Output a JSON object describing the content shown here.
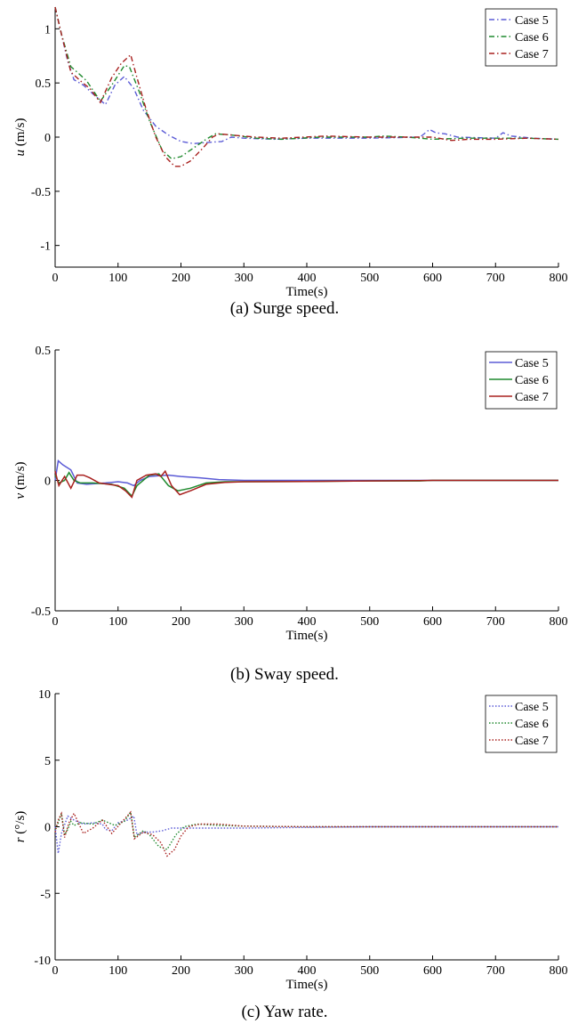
{
  "chart_data": [
    {
      "type": "line",
      "caption": "(a) Surge speed.",
      "xlabel": "Time(s)",
      "ylabel_var": "u",
      "ylabel_unit": " (m/s)",
      "xlim": [
        0,
        800
      ],
      "ylim": [
        -1.2,
        1.2
      ],
      "xticks": [
        0,
        100,
        200,
        300,
        400,
        500,
        600,
        700,
        800
      ],
      "yticks": [
        -1,
        -0.5,
        0,
        0.5,
        1
      ],
      "ytick_labels": [
        "-1",
        "-0.5",
        "0",
        "0.5",
        "1"
      ],
      "grid": false,
      "legend": "top-right",
      "line_style": "dashdot",
      "series": [
        {
          "name": "Case 5",
          "color": "#5b5bd6",
          "points": [
            [
              0,
              1.2
            ],
            [
              10,
              0.95
            ],
            [
              20,
              0.7
            ],
            [
              30,
              0.53
            ],
            [
              45,
              0.48
            ],
            [
              60,
              0.4
            ],
            [
              80,
              0.3
            ],
            [
              95,
              0.48
            ],
            [
              110,
              0.56
            ],
            [
              125,
              0.45
            ],
            [
              140,
              0.25
            ],
            [
              160,
              0.1
            ],
            [
              180,
              0.02
            ],
            [
              200,
              -0.04
            ],
            [
              220,
              -0.06
            ],
            [
              240,
              -0.05
            ],
            [
              265,
              -0.04
            ],
            [
              280,
              0.0
            ],
            [
              300,
              -0.01
            ],
            [
              350,
              -0.02
            ],
            [
              400,
              -0.01
            ],
            [
              500,
              -0.01
            ],
            [
              580,
              0.0
            ],
            [
              595,
              0.07
            ],
            [
              605,
              0.04
            ],
            [
              620,
              0.03
            ],
            [
              640,
              0.0
            ],
            [
              700,
              -0.01
            ],
            [
              712,
              0.04
            ],
            [
              725,
              0.01
            ],
            [
              760,
              -0.01
            ],
            [
              800,
              -0.02
            ]
          ]
        },
        {
          "name": "Case 6",
          "color": "#1f8a2e",
          "points": [
            [
              0,
              1.2
            ],
            [
              10,
              0.95
            ],
            [
              25,
              0.65
            ],
            [
              35,
              0.6
            ],
            [
              50,
              0.52
            ],
            [
              72,
              0.33
            ],
            [
              90,
              0.48
            ],
            [
              110,
              0.66
            ],
            [
              118,
              0.65
            ],
            [
              135,
              0.4
            ],
            [
              150,
              0.15
            ],
            [
              170,
              -0.12
            ],
            [
              185,
              -0.2
            ],
            [
              200,
              -0.18
            ],
            [
              220,
              -0.1
            ],
            [
              240,
              -0.02
            ],
            [
              255,
              0.03
            ],
            [
              280,
              0.02
            ],
            [
              320,
              -0.01
            ],
            [
              360,
              -0.02
            ],
            [
              420,
              0.0
            ],
            [
              500,
              0.0
            ],
            [
              520,
              0.01
            ],
            [
              560,
              0.0
            ],
            [
              600,
              -0.02
            ],
            [
              650,
              -0.01
            ],
            [
              700,
              -0.01
            ],
            [
              750,
              -0.01
            ],
            [
              800,
              -0.02
            ]
          ]
        },
        {
          "name": "Case 7",
          "color": "#a8201e",
          "points": [
            [
              0,
              1.2
            ],
            [
              10,
              0.95
            ],
            [
              25,
              0.6
            ],
            [
              40,
              0.52
            ],
            [
              55,
              0.45
            ],
            [
              72,
              0.32
            ],
            [
              90,
              0.55
            ],
            [
              105,
              0.68
            ],
            [
              120,
              0.76
            ],
            [
              130,
              0.55
            ],
            [
              145,
              0.25
            ],
            [
              160,
              0.0
            ],
            [
              175,
              -0.18
            ],
            [
              190,
              -0.27
            ],
            [
              200,
              -0.27
            ],
            [
              215,
              -0.22
            ],
            [
              235,
              -0.1
            ],
            [
              250,
              0.0
            ],
            [
              260,
              0.03
            ],
            [
              280,
              0.02
            ],
            [
              320,
              0.0
            ],
            [
              360,
              -0.01
            ],
            [
              430,
              0.01
            ],
            [
              500,
              0.0
            ],
            [
              560,
              0.0
            ],
            [
              600,
              0.0
            ],
            [
              630,
              -0.03
            ],
            [
              660,
              -0.02
            ],
            [
              700,
              -0.02
            ],
            [
              750,
              -0.01
            ],
            [
              800,
              -0.02
            ]
          ]
        }
      ]
    },
    {
      "type": "line",
      "caption": "(b) Sway speed.",
      "xlabel": "Time(s)",
      "ylabel_var": "v",
      "ylabel_unit": " (m/s)",
      "xlim": [
        0,
        800
      ],
      "ylim": [
        -0.5,
        0.5
      ],
      "xticks": [
        0,
        100,
        200,
        300,
        400,
        500,
        600,
        700,
        800
      ],
      "yticks": [
        -0.5,
        0,
        0.5
      ],
      "ytick_labels": [
        "-0.5",
        "0",
        "0.5"
      ],
      "grid": false,
      "legend": "top-right",
      "line_style": "solid",
      "series": [
        {
          "name": "Case 5",
          "color": "#5b5bd6",
          "points": [
            [
              0,
              0.0
            ],
            [
              5,
              0.075
            ],
            [
              12,
              0.06
            ],
            [
              25,
              0.04
            ],
            [
              35,
              -0.01
            ],
            [
              50,
              -0.015
            ],
            [
              80,
              -0.01
            ],
            [
              100,
              -0.005
            ],
            [
              115,
              -0.01
            ],
            [
              125,
              -0.02
            ],
            [
              135,
              0.0
            ],
            [
              150,
              0.015
            ],
            [
              165,
              0.018
            ],
            [
              180,
              0.02
            ],
            [
              200,
              0.015
            ],
            [
              230,
              0.01
            ],
            [
              260,
              0.003
            ],
            [
              300,
              0.0
            ],
            [
              400,
              0.0
            ],
            [
              500,
              0.0
            ],
            [
              600,
              0.0
            ],
            [
              700,
              0.0
            ],
            [
              800,
              0.0
            ]
          ]
        },
        {
          "name": "Case 6",
          "color": "#1f8a2e",
          "points": [
            [
              0,
              0.02
            ],
            [
              6,
              -0.01
            ],
            [
              15,
              0.0
            ],
            [
              22,
              0.03
            ],
            [
              30,
              0.0
            ],
            [
              40,
              -0.01
            ],
            [
              60,
              -0.01
            ],
            [
              90,
              -0.015
            ],
            [
              110,
              -0.03
            ],
            [
              122,
              -0.06
            ],
            [
              130,
              -0.02
            ],
            [
              150,
              0.02
            ],
            [
              165,
              0.025
            ],
            [
              180,
              -0.02
            ],
            [
              195,
              -0.04
            ],
            [
              215,
              -0.03
            ],
            [
              240,
              -0.01
            ],
            [
              270,
              -0.005
            ],
            [
              300,
              -0.005
            ],
            [
              400,
              -0.004
            ],
            [
              500,
              -0.002
            ],
            [
              580,
              -0.002
            ],
            [
              600,
              0.0
            ],
            [
              800,
              0.0
            ]
          ]
        },
        {
          "name": "Case 7",
          "color": "#a8201e",
          "points": [
            [
              0,
              0.035
            ],
            [
              6,
              -0.02
            ],
            [
              15,
              0.015
            ],
            [
              25,
              -0.03
            ],
            [
              35,
              0.02
            ],
            [
              45,
              0.02
            ],
            [
              55,
              0.01
            ],
            [
              70,
              -0.01
            ],
            [
              100,
              -0.02
            ],
            [
              112,
              -0.04
            ],
            [
              122,
              -0.065
            ],
            [
              130,
              0.0
            ],
            [
              145,
              0.02
            ],
            [
              160,
              0.025
            ],
            [
              168,
              0.015
            ],
            [
              175,
              0.035
            ],
            [
              185,
              -0.02
            ],
            [
              198,
              -0.055
            ],
            [
              215,
              -0.04
            ],
            [
              240,
              -0.015
            ],
            [
              270,
              -0.008
            ],
            [
              300,
              -0.005
            ],
            [
              400,
              -0.004
            ],
            [
              500,
              -0.002
            ],
            [
              580,
              -0.001
            ],
            [
              600,
              0.0
            ],
            [
              800,
              0.0
            ]
          ]
        }
      ]
    },
    {
      "type": "line",
      "caption": "(c) Yaw rate.",
      "xlabel": "Time(s)",
      "ylabel_var": "r",
      "ylabel_unit": " (°/s)",
      "xlim": [
        0,
        800
      ],
      "ylim": [
        -10,
        10
      ],
      "xticks": [
        0,
        100,
        200,
        300,
        400,
        500,
        600,
        700,
        800
      ],
      "yticks": [
        -10,
        -5,
        0,
        5,
        10
      ],
      "ytick_labels": [
        "-10",
        "-5",
        "0",
        "5",
        "10"
      ],
      "grid": false,
      "legend": "top-right",
      "line_style": "dotted",
      "series": [
        {
          "name": "Case 5",
          "color": "#5b5bd6",
          "points": [
            [
              0,
              0.0
            ],
            [
              5,
              -2.0
            ],
            [
              10,
              -0.5
            ],
            [
              20,
              0.8
            ],
            [
              30,
              0.5
            ],
            [
              45,
              0.2
            ],
            [
              60,
              0.3
            ],
            [
              75,
              0.2
            ],
            [
              80,
              -0.2
            ],
            [
              90,
              -0.3
            ],
            [
              100,
              0.3
            ],
            [
              115,
              0.5
            ],
            [
              125,
              0.8
            ],
            [
              130,
              -0.6
            ],
            [
              140,
              -0.4
            ],
            [
              155,
              -0.4
            ],
            [
              170,
              -0.3
            ],
            [
              185,
              -0.1
            ],
            [
              200,
              -0.1
            ],
            [
              300,
              -0.1
            ],
            [
              400,
              -0.05
            ],
            [
              500,
              0.0
            ],
            [
              800,
              0.0
            ]
          ]
        },
        {
          "name": "Case 6",
          "color": "#1f8a2e",
          "points": [
            [
              0,
              -0.2
            ],
            [
              5,
              0.3
            ],
            [
              10,
              1.0
            ],
            [
              15,
              -0.6
            ],
            [
              20,
              -0.2
            ],
            [
              25,
              0.4
            ],
            [
              30,
              0.1
            ],
            [
              40,
              0.3
            ],
            [
              60,
              0.2
            ],
            [
              75,
              0.5
            ],
            [
              95,
              0.1
            ],
            [
              110,
              0.4
            ],
            [
              120,
              1.1
            ],
            [
              126,
              -0.8
            ],
            [
              140,
              -0.3
            ],
            [
              150,
              -0.6
            ],
            [
              165,
              -1.5
            ],
            [
              178,
              -1.7
            ],
            [
              192,
              -0.6
            ],
            [
              205,
              0.0
            ],
            [
              225,
              0.2
            ],
            [
              260,
              0.1
            ],
            [
              300,
              0.05
            ],
            [
              400,
              0.0
            ],
            [
              500,
              0.0
            ],
            [
              800,
              0.0
            ]
          ]
        },
        {
          "name": "Case 7",
          "color": "#a8201e",
          "points": [
            [
              0,
              -0.4
            ],
            [
              5,
              0.5
            ],
            [
              10,
              1.0
            ],
            [
              15,
              -0.8
            ],
            [
              22,
              0.3
            ],
            [
              30,
              1.0
            ],
            [
              45,
              -0.5
            ],
            [
              60,
              -0.1
            ],
            [
              75,
              0.5
            ],
            [
              90,
              -0.5
            ],
            [
              105,
              0.3
            ],
            [
              120,
              1.1
            ],
            [
              126,
              -0.9
            ],
            [
              140,
              -0.4
            ],
            [
              155,
              -0.6
            ],
            [
              168,
              -1.2
            ],
            [
              178,
              -2.2
            ],
            [
              190,
              -1.7
            ],
            [
              200,
              -0.7
            ],
            [
              212,
              0.0
            ],
            [
              230,
              0.2
            ],
            [
              260,
              0.2
            ],
            [
              300,
              0.05
            ],
            [
              400,
              0.0
            ],
            [
              500,
              0.0
            ],
            [
              800,
              0.0
            ]
          ]
        }
      ]
    }
  ]
}
